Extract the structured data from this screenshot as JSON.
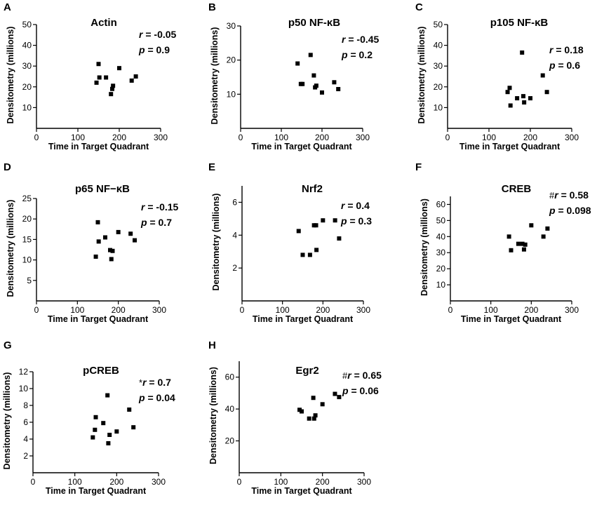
{
  "chart_data": [
    {
      "panel": "A",
      "title": "Actin",
      "type": "scatter",
      "stat_mark": "",
      "r": "-0.05",
      "p": "0.9",
      "xlabel": "Time in Target Quadrant",
      "ylabel": "Densitometry (millions)",
      "xlim": [
        0,
        300
      ],
      "ylim": [
        0,
        50
      ],
      "xticks": [
        0,
        100,
        200,
        300
      ],
      "yticks": [
        10,
        20,
        30,
        40,
        50
      ],
      "points": [
        [
          145,
          22
        ],
        [
          150,
          31
        ],
        [
          152,
          24.5
        ],
        [
          168,
          24.5
        ],
        [
          180,
          16.5
        ],
        [
          183,
          19
        ],
        [
          185,
          20.5
        ],
        [
          200,
          29
        ],
        [
          230,
          23
        ],
        [
          240,
          25
        ]
      ]
    },
    {
      "panel": "B",
      "title": "p50 NF-κB",
      "type": "scatter",
      "stat_mark": "",
      "r": "-0.45",
      "p": "0.2",
      "xlabel": "Time in Target Quadrant",
      "ylabel": "Densitometry (millions)",
      "xlim": [
        0,
        300
      ],
      "ylim": [
        0,
        30
      ],
      "xticks": [
        0,
        100,
        200,
        300
      ],
      "yticks": [
        10,
        20,
        30
      ],
      "points": [
        [
          140,
          19
        ],
        [
          148,
          13
        ],
        [
          152,
          13
        ],
        [
          172,
          21.5
        ],
        [
          180,
          15.5
        ],
        [
          183,
          12
        ],
        [
          186,
          12.5
        ],
        [
          200,
          10.5
        ],
        [
          230,
          13.5
        ],
        [
          240,
          11.5
        ]
      ]
    },
    {
      "panel": "C",
      "title": "p105 NF-κB",
      "type": "scatter",
      "stat_mark": "",
      "r": "0.18",
      "p": "0.6",
      "xlabel": "Time in Target Quadrant",
      "ylabel": "Densitometry (millions)",
      "xlim": [
        0,
        300
      ],
      "ylim": [
        0,
        50
      ],
      "xticks": [
        0,
        100,
        200,
        300
      ],
      "yticks": [
        10,
        20,
        30,
        40,
        50
      ],
      "points": [
        [
          145,
          17.5
        ],
        [
          150,
          19.5
        ],
        [
          152,
          11
        ],
        [
          168,
          14.5
        ],
        [
          180,
          36.5
        ],
        [
          183,
          15.5
        ],
        [
          185,
          12.5
        ],
        [
          200,
          14.5
        ],
        [
          230,
          25.5
        ],
        [
          240,
          17.5
        ]
      ]
    },
    {
      "panel": "D",
      "title": "p65 NF−κB",
      "type": "scatter",
      "stat_mark": "",
      "r": "-0.15",
      "p": "0.7",
      "xlabel": "Time in Target Quadrant",
      "ylabel": "Densitometry (millions)",
      "xlim": [
        0,
        300
      ],
      "ylim": [
        0,
        25
      ],
      "xticks": [
        0,
        100,
        200,
        300
      ],
      "yticks": [
        5,
        10,
        15,
        20,
        25
      ],
      "points": [
        [
          145,
          10.8
        ],
        [
          150,
          19.2
        ],
        [
          152,
          14.5
        ],
        [
          168,
          15.5
        ],
        [
          180,
          12.4
        ],
        [
          183,
          10.2
        ],
        [
          186,
          12.2
        ],
        [
          200,
          16.8
        ],
        [
          230,
          16.4
        ],
        [
          240,
          14.8
        ]
      ]
    },
    {
      "panel": "E",
      "title": "Nrf2",
      "type": "scatter",
      "stat_mark": "",
      "r": "0.4",
      "p": "0.3",
      "xlabel": "Time in Target Quadrant",
      "ylabel": "Densitometry (millions)",
      "xlim": [
        0,
        300
      ],
      "ylim": [
        0,
        7
      ],
      "xticks": [
        0,
        100,
        200,
        300
      ],
      "yticks": [
        2,
        4,
        6
      ],
      "points": [
        [
          140,
          4.25
        ],
        [
          150,
          2.8
        ],
        [
          168,
          2.8
        ],
        [
          178,
          4.6
        ],
        [
          183,
          4.6
        ],
        [
          184,
          3.1
        ],
        [
          200,
          4.9
        ],
        [
          230,
          4.9
        ],
        [
          240,
          3.8
        ]
      ]
    },
    {
      "panel": "F",
      "title": "CREB",
      "type": "scatter",
      "stat_mark": "#",
      "r": "0.58",
      "p": "0.098",
      "xlabel": "Time in Target Quadrant",
      "ylabel": "Densitometry (millions)",
      "xlim": [
        0,
        300
      ],
      "ylim": [
        0,
        65
      ],
      "xticks": [
        0,
        100,
        200,
        300
      ],
      "yticks": [
        10,
        20,
        30,
        40,
        50,
        60
      ],
      "points": [
        [
          145,
          40
        ],
        [
          150,
          31.5
        ],
        [
          168,
          35.5
        ],
        [
          178,
          35.5
        ],
        [
          182,
          32
        ],
        [
          185,
          35
        ],
        [
          200,
          47
        ],
        [
          230,
          40
        ],
        [
          240,
          45
        ]
      ]
    },
    {
      "panel": "G",
      "title": "pCREB",
      "type": "scatter",
      "stat_mark": "*",
      "r": "0.7",
      "p": "0.04",
      "xlabel": "Time in Target Quadrant",
      "ylabel": "Densitometry (millions)",
      "xlim": [
        0,
        300
      ],
      "ylim": [
        0,
        12
      ],
      "xticks": [
        0,
        100,
        200,
        300
      ],
      "yticks": [
        2,
        4,
        6,
        8,
        10,
        12
      ],
      "points": [
        [
          143,
          4.2
        ],
        [
          148,
          5.1
        ],
        [
          150,
          6.6
        ],
        [
          168,
          5.9
        ],
        [
          178,
          9.2
        ],
        [
          180,
          3.5
        ],
        [
          183,
          4.5
        ],
        [
          200,
          4.9
        ],
        [
          230,
          7.5
        ],
        [
          240,
          5.4
        ]
      ]
    },
    {
      "panel": "H",
      "title": "Egr2",
      "type": "scatter",
      "stat_mark": "#",
      "r": "0.65",
      "p": "0.06",
      "xlabel": "Time in Target Quadrant",
      "ylabel": "Densitometry (millions)",
      "xlim": [
        0,
        300
      ],
      "ylim": [
        0,
        70
      ],
      "xticks": [
        0,
        100,
        200,
        300
      ],
      "yticks": [
        20,
        40,
        60
      ],
      "points": [
        [
          145,
          39.5
        ],
        [
          150,
          38.5
        ],
        [
          168,
          34
        ],
        [
          178,
          47
        ],
        [
          180,
          34
        ],
        [
          183,
          36
        ],
        [
          200,
          43
        ],
        [
          230,
          49.5
        ],
        [
          240,
          47.5
        ]
      ]
    }
  ]
}
